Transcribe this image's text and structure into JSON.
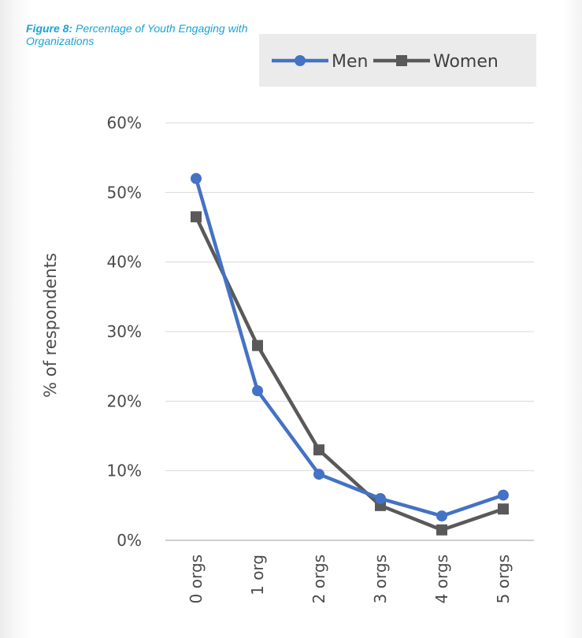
{
  "figure": {
    "label": "Figure 8:",
    "title": "Percentage of Youth Engaging with Organizations"
  },
  "colors": {
    "caption": "#1aa3d4",
    "men": "#4472c4",
    "women": "#595959",
    "grid": "#d9d9d9",
    "axis_text": "#4a4a4a"
  },
  "chart_data": {
    "type": "line",
    "categories": [
      "0 orgs",
      "1 org",
      "2 orgs",
      "3 orgs",
      "4 orgs",
      "5 orgs"
    ],
    "series": [
      {
        "name": "Men",
        "values": [
          52,
          21.5,
          9.5,
          6,
          3.5,
          6.5
        ],
        "marker": "circle"
      },
      {
        "name": "Women",
        "values": [
          46.5,
          28,
          13,
          5,
          1.5,
          4.5
        ],
        "marker": "square"
      }
    ],
    "title": "",
    "xlabel": "",
    "ylabel": "% of respondents",
    "ylim": [
      0,
      60
    ],
    "yticks": [
      "0%",
      "10%",
      "20%",
      "30%",
      "40%",
      "50%",
      "60%"
    ],
    "grid": true,
    "legend": "top"
  }
}
